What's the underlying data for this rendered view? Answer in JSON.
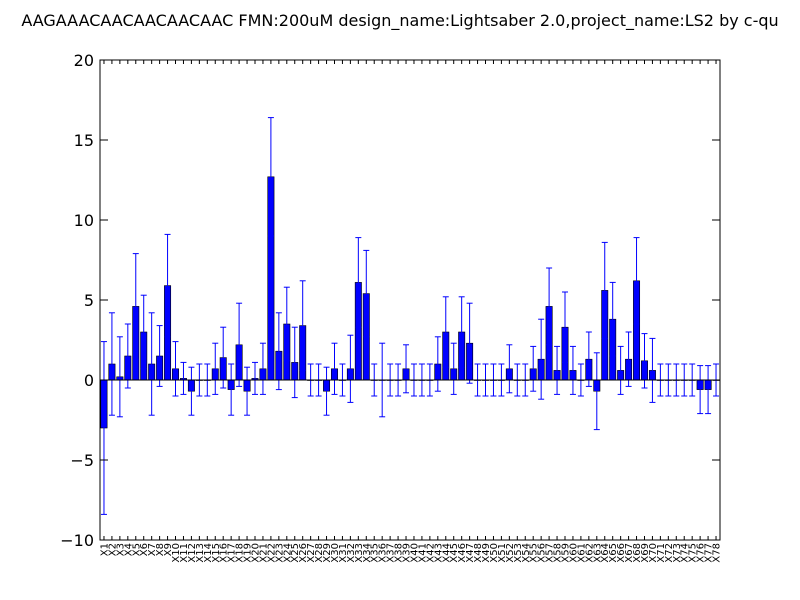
{
  "chart_data": {
    "type": "bar",
    "title": "AAGAAACAACAACAACAAC  FMN:200uM  design_name:Lightsaber 2.0,project_name:LS2 by c-qu",
    "xlabel": "",
    "ylabel": "",
    "ylim": [
      -10,
      20
    ],
    "yticks": [
      -10,
      -5,
      0,
      5,
      10,
      15,
      20
    ],
    "grid": false,
    "bar_color": "#0000ff",
    "error_color": "#0000ff",
    "categories": [
      "X1",
      "X2",
      "X3",
      "X4",
      "X5",
      "X6",
      "X7",
      "X8",
      "X9",
      "X10",
      "X11",
      "X12",
      "X13",
      "X14",
      "X15",
      "X16",
      "X17",
      "X18",
      "X19",
      "X20",
      "X21",
      "X22",
      "X23",
      "X24",
      "X25",
      "X26",
      "X27",
      "X28",
      "X29",
      "X30",
      "X31",
      "X32",
      "X33",
      "X34",
      "X35",
      "X36",
      "X37",
      "X38",
      "X39",
      "X40",
      "X41",
      "X42",
      "X43",
      "X44",
      "X45",
      "X46",
      "X47",
      "X48",
      "X49",
      "X50",
      "X51",
      "X52",
      "X53",
      "X54",
      "X55",
      "X56",
      "X57",
      "X58",
      "X59",
      "X60",
      "X61",
      "X62",
      "X63",
      "X64",
      "X65",
      "X66",
      "X67",
      "X68",
      "X69",
      "X70",
      "X71",
      "X72",
      "X73",
      "X74",
      "X75",
      "X76",
      "X77",
      "X78"
    ],
    "values": [
      -3.0,
      1.0,
      0.2,
      1.5,
      4.6,
      3.0,
      1.0,
      1.5,
      5.9,
      0.7,
      0.1,
      -0.7,
      0.0,
      0.0,
      0.7,
      1.4,
      -0.6,
      2.2,
      -0.7,
      0.1,
      0.7,
      12.7,
      1.8,
      3.5,
      1.1,
      3.4,
      0.0,
      0.0,
      -0.7,
      0.7,
      0.0,
      0.7,
      6.1,
      5.4,
      0.0,
      0.0,
      0.0,
      0.0,
      0.7,
      0.0,
      0.0,
      0.0,
      1.0,
      3.0,
      0.7,
      3.0,
      2.3,
      0.0,
      0.0,
      0.0,
      0.0,
      0.7,
      0.0,
      0.0,
      0.7,
      1.3,
      4.6,
      0.6,
      3.3,
      0.6,
      0.0,
      1.3,
      -0.7,
      5.6,
      3.8,
      0.6,
      1.3,
      6.2,
      1.2,
      0.6,
      0.0,
      0.0,
      0.0,
      0.0,
      0.0,
      -0.6,
      -0.6,
      0.0
    ],
    "errors": [
      5.4,
      3.2,
      2.5,
      2.0,
      3.3,
      2.3,
      3.2,
      1.9,
      3.2,
      1.7,
      1.0,
      1.5,
      1.0,
      1.0,
      1.6,
      1.9,
      1.6,
      2.6,
      1.5,
      1.0,
      1.6,
      3.7,
      2.4,
      2.3,
      2.2,
      2.8,
      1.0,
      1.0,
      1.5,
      1.6,
      1.0,
      2.1,
      2.8,
      2.7,
      1.0,
      2.3,
      1.0,
      1.0,
      1.5,
      1.0,
      1.0,
      1.0,
      1.7,
      2.2,
      1.6,
      2.2,
      2.5,
      1.0,
      1.0,
      1.0,
      1.0,
      1.5,
      1.0,
      1.0,
      1.4,
      2.5,
      2.4,
      1.5,
      2.2,
      1.5,
      1.0,
      1.7,
      2.4,
      3.0,
      2.3,
      1.5,
      1.7,
      2.7,
      1.7,
      2.0,
      1.0,
      1.0,
      1.0,
      1.0,
      1.0,
      1.5,
      1.5,
      1.0
    ]
  }
}
